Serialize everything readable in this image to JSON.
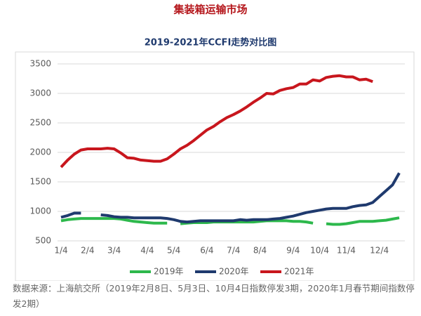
{
  "header": {
    "title": "集装箱运输市场"
  },
  "chart_data": {
    "type": "line",
    "title": "2019-2021年CCFI走势对比图",
    "categories": [
      "1/4",
      null,
      null,
      null,
      "2/4",
      null,
      null,
      null,
      "3/4",
      null,
      null,
      null,
      null,
      "4/4",
      null,
      null,
      null,
      "5/4",
      null,
      null,
      null,
      null,
      "6/4",
      null,
      null,
      null,
      "7/4",
      null,
      null,
      null,
      "8/4",
      null,
      null,
      null,
      null,
      "9/4",
      null,
      null,
      null,
      "10/4",
      null,
      null,
      null,
      "11/4",
      null,
      null,
      null,
      null,
      "12/4",
      null,
      null,
      null
    ],
    "series": [
      {
        "name": "2019年",
        "color": "#2db84c",
        "values": [
          840,
          860,
          870,
          880,
          880,
          880,
          880,
          880,
          880,
          870,
          850,
          830,
          820,
          810,
          800,
          800,
          800,
          null,
          790,
          800,
          810,
          810,
          810,
          820,
          820,
          820,
          820,
          820,
          820,
          820,
          830,
          840,
          840,
          840,
          840,
          830,
          830,
          820,
          800,
          null,
          790,
          780,
          780,
          790,
          810,
          830,
          830,
          830,
          840,
          850,
          870,
          890
        ]
      },
      {
        "name": "2020年",
        "color": "#1f3a6e",
        "values": [
          900,
          930,
          970,
          970,
          null,
          null,
          940,
          930,
          910,
          900,
          900,
          890,
          890,
          890,
          890,
          890,
          880,
          860,
          830,
          820,
          830,
          840,
          840,
          840,
          840,
          840,
          840,
          860,
          850,
          860,
          860,
          860,
          870,
          880,
          900,
          920,
          950,
          980,
          1000,
          1020,
          1040,
          1050,
          1050,
          1050,
          1080,
          1100,
          1110,
          1150,
          1250,
          1350,
          1450,
          1650
        ]
      },
      {
        "name": "2021年",
        "color": "#c8161d",
        "values": [
          1750,
          1870,
          1970,
          2040,
          2060,
          2060,
          2060,
          2070,
          2060,
          1990,
          1910,
          1900,
          1870,
          1860,
          1850,
          1850,
          1890,
          1970,
          2060,
          2120,
          2200,
          2290,
          2380,
          2440,
          2520,
          2590,
          2640,
          2700,
          2770,
          2850,
          2920,
          3000,
          2990,
          3050,
          3080,
          3100,
          3160,
          3160,
          3230,
          3210,
          3270,
          3290,
          3300,
          3280,
          3280,
          3230,
          3240,
          3200,
          null,
          null,
          null,
          null
        ]
      }
    ],
    "ylim": [
      500,
      3500
    ],
    "yticks": [
      500,
      1000,
      1500,
      2000,
      2500,
      3000,
      3500
    ],
    "grid": true,
    "note": "数据来源：上海航交所（2019年2月8日、5月3日、10月4日指数停发3期，2020年1月春节期间指数停发2期）"
  }
}
